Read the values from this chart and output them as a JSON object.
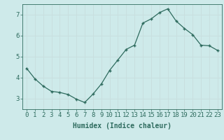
{
  "x": [
    0,
    1,
    2,
    3,
    4,
    5,
    6,
    7,
    8,
    9,
    10,
    11,
    12,
    13,
    14,
    15,
    16,
    17,
    18,
    19,
    20,
    21,
    22,
    23
  ],
  "y": [
    4.45,
    3.95,
    3.6,
    3.35,
    3.3,
    3.2,
    2.98,
    2.82,
    3.22,
    3.7,
    4.35,
    4.85,
    5.35,
    5.55,
    6.6,
    6.8,
    7.1,
    7.28,
    6.7,
    6.35,
    6.05,
    5.55,
    5.52,
    5.3
  ],
  "line_color": "#2e6b5e",
  "marker": "+",
  "marker_size": 3,
  "marker_lw": 1.0,
  "line_width": 0.9,
  "bg_color": "#ceeaea",
  "grid_color": "#b8d8d8",
  "xlabel": "Humidex (Indice chaleur)",
  "xlim": [
    -0.5,
    23.5
  ],
  "ylim": [
    2.5,
    7.5
  ],
  "yticks": [
    3,
    4,
    5,
    6,
    7
  ],
  "xtick_labels": [
    "0",
    "1",
    "2",
    "3",
    "4",
    "5",
    "6",
    "7",
    "8",
    "9",
    "10",
    "11",
    "12",
    "13",
    "14",
    "15",
    "16",
    "17",
    "18",
    "19",
    "20",
    "21",
    "22",
    "23"
  ],
  "tick_color": "#2e6b5e",
  "label_fontsize": 7,
  "tick_fontsize": 6.5
}
